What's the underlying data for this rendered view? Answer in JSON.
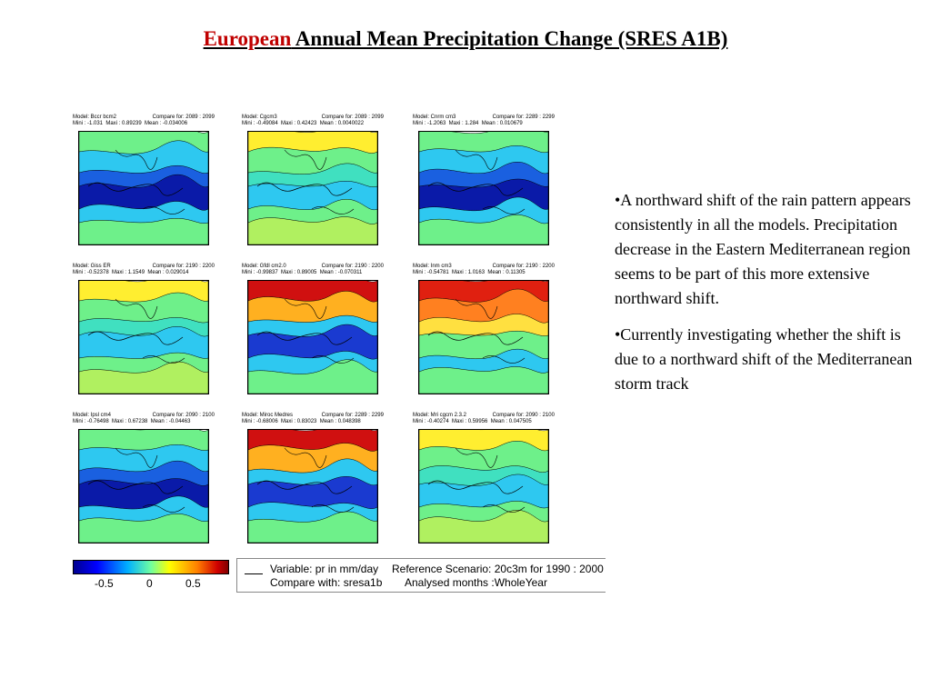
{
  "title": {
    "highlight": "European",
    "rest": " Annual Mean Precipitation Change (SRES A1B)"
  },
  "panels": [
    {
      "model": "Model: Bccr bcm2",
      "stats": "Mini : -1.031  Maxi : 0.89239  Mean : -0.034006",
      "compare": "Compare for: 2089 : 2099",
      "scheme": "blue"
    },
    {
      "model": "Model: Cgcm3",
      "stats": "Mini : -0.49084  Maxi : 0.42423  Mean : 0.0040022",
      "compare": "Compare for: 2089 : 2099",
      "scheme": "green"
    },
    {
      "model": "Model: Cnrm cm3",
      "stats": "Mini : -1.2063  Maxi : 1.284  Mean : 0.010679",
      "compare": "Compare for: 2289 : 2299",
      "scheme": "blue"
    },
    {
      "model": "Model: Giss ER",
      "stats": "Mini : -0.52378  Maxi : 1.1549  Mean : 0.029014",
      "compare": "Compare for: 2190 : 2200",
      "scheme": "green"
    },
    {
      "model": "Model: Gfdl cm2.0",
      "stats": "Mini : -0.99837  Maxi : 0.89005  Mean : -0.070311",
      "compare": "Compare for: 2190 : 2200",
      "scheme": "red"
    },
    {
      "model": "Model: Inm cm3",
      "stats": "Mini : -0.54781  Maxi : 1.0163  Mean : 0.11305",
      "compare": "Compare for: 2190 : 2200",
      "scheme": "warm"
    },
    {
      "model": "Model: Ipsl cm4",
      "stats": "Mini : -0.76498  Maxi : 0.67238  Mean : -0.04463",
      "compare": "Compare for: 2090 : 2100",
      "scheme": "blue"
    },
    {
      "model": "Model: Miroc Medres",
      "stats": "Mini : -0.68006  Maxi : 0.83023  Mean : 0.048398",
      "compare": "Compare for: 2289 : 2299",
      "scheme": "red"
    },
    {
      "model": "Model: Mri cgcm 2.3.2",
      "stats": "Mini : -0.40274  Maxi : 0.59956  Mean : 0.047505",
      "compare": "Compare for: 2090 : 2100",
      "scheme": "green"
    }
  ],
  "colorbar": {
    "ticks": [
      "-0.5",
      "0",
      "0.5"
    ]
  },
  "info": {
    "variable": "Variable: pr in mm/day",
    "compare": "Compare with: sresa1b",
    "reference": "Reference Scenario: 20c3m for 1990 : 2000",
    "months": "Analysed months :WholeYear"
  },
  "notes": [
    "•A northward shift of the rain pattern appears consistently in all the models. Precipitation decrease in the Eastern Mediterranean region seems to be part of this more extensive northward shift.",
    "•Currently investigating whether the shift is due to a northward shift of the Mediterranean storm track"
  ],
  "colors": {
    "title_highlight": "#c00000"
  }
}
